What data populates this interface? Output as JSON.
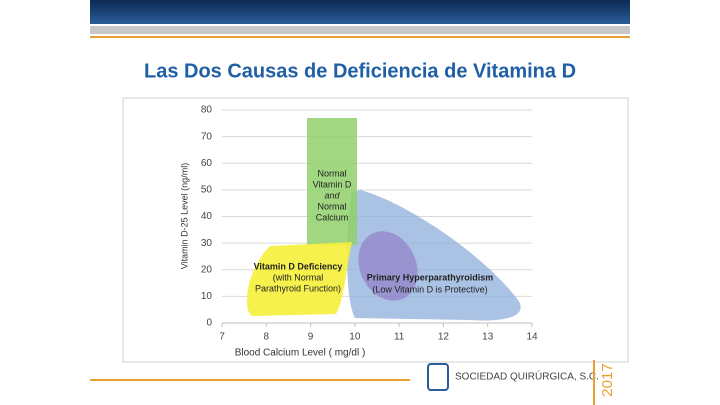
{
  "slide": {
    "title": "Las Dos Causas de Deficiencia de Vitamina D",
    "footer": "SOCIEDAD QUIRÚRGICA, S.C.",
    "year": "2017"
  },
  "chart_data": {
    "type": "region",
    "xlabel": "Blood Calcium Level  ( mg/dl )",
    "ylabel": "Vitamin D-25 Level  (ng/ml)",
    "xlim": [
      7,
      14
    ],
    "ylim": [
      0,
      80
    ],
    "xticks": [
      7,
      8,
      9,
      10,
      11,
      12,
      13,
      14
    ],
    "yticks": [
      0,
      10,
      20,
      30,
      40,
      50,
      60,
      70,
      80
    ],
    "grid": true,
    "regions": [
      {
        "lines": [
          "Normal",
          "Vitamin D",
          "and",
          "Normal",
          "Calcium"
        ]
      },
      {
        "lines": [
          "Vitamin D Deficiency",
          "(with Normal",
          "Parathyroid Function)"
        ]
      },
      {
        "lines": [
          "Primary Hyperparathyroidism",
          "(Low Vitamin D is Protective)"
        ]
      }
    ]
  }
}
